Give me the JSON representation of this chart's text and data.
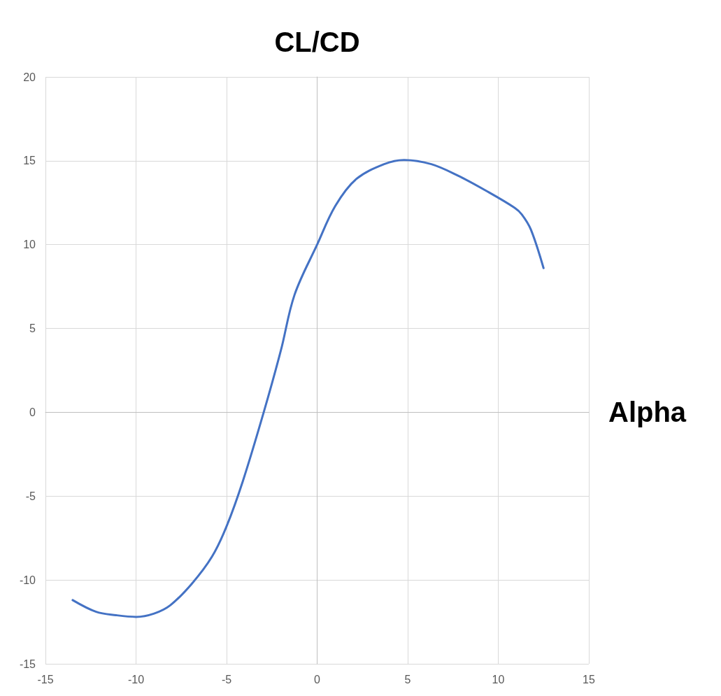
{
  "chart_data": {
    "type": "line",
    "xlabel": "Alpha",
    "ylabel": "CL/CD",
    "x": [
      -13.5,
      -12.2,
      -11.1,
      -10,
      -9,
      -8.1,
      -6.9,
      -5.8,
      -5,
      -4.1,
      -2.95,
      -2,
      -1.25,
      0,
      1,
      2.15,
      3.7,
      4.8,
      6.3,
      7.8,
      9.35,
      10.9,
      11.3,
      11.8,
      12.5
    ],
    "series": [
      {
        "color": "#4472c4",
        "values": [
          -11.2,
          -11.9,
          -12.1,
          -12.2,
          -12,
          -11.5,
          -10.2,
          -8.6,
          -6.8,
          -4.1,
          0,
          3.7,
          7,
          10,
          12.3,
          13.9,
          14.8,
          15.05,
          14.8,
          14.1,
          13.2,
          12.2,
          11.8,
          10.9,
          8.6
        ]
      }
    ],
    "xlim": [
      -15,
      15
    ],
    "xticks": [
      -15,
      -10,
      -5,
      0,
      5,
      10,
      15
    ],
    "ylim": [
      -15,
      20
    ],
    "yticks": [
      -15,
      -10,
      -5,
      0,
      5,
      10,
      15,
      20
    ],
    "grid": true,
    "marker": "none",
    "line_style": "solid"
  }
}
